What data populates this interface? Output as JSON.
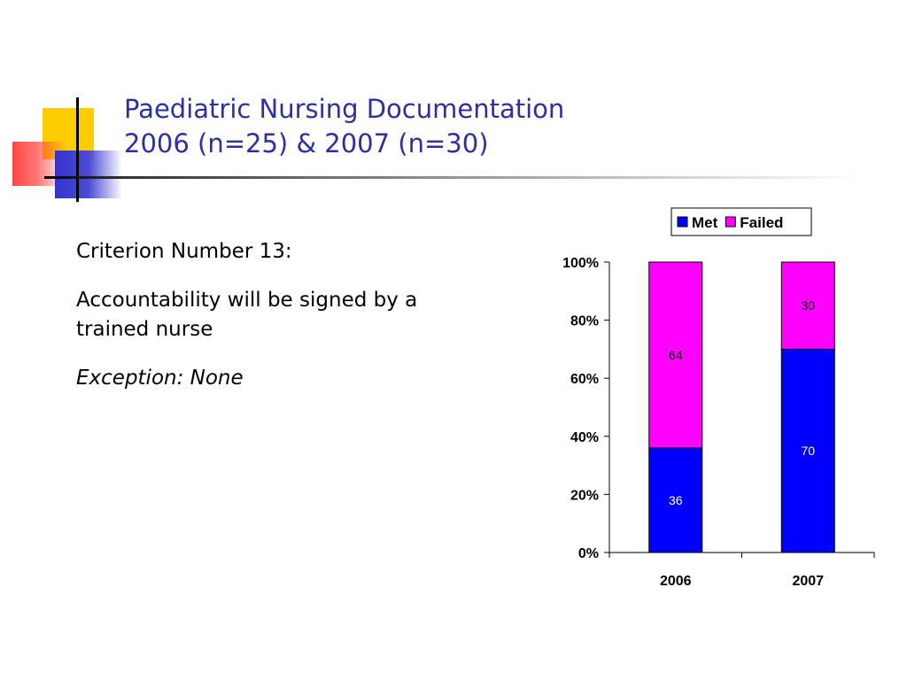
{
  "slide": {
    "title_line1": "Paediatric Nursing Documentation",
    "title_line2": "2006 (n=25) & 2007 (n=30)",
    "criterion": "Criterion Number 13:",
    "statement": "Accountability will be signed by a trained nurse",
    "exception": "Exception: None"
  },
  "colors": {
    "title": "#2e2ea8",
    "met": "#0000ff",
    "failed": "#ff00ff"
  },
  "chart_data": {
    "type": "bar",
    "stacked": true,
    "percent_stacked": true,
    "categories": [
      "2006",
      "2007"
    ],
    "series": [
      {
        "name": "Met",
        "values": [
          36,
          70
        ],
        "color": "#0000ff",
        "label_color": "#ffffff"
      },
      {
        "name": "Failed",
        "values": [
          64,
          30
        ],
        "color": "#ff00ff",
        "label_color": "#000000"
      }
    ],
    "yticks": [
      "0%",
      "20%",
      "40%",
      "60%",
      "80%",
      "100%"
    ],
    "ylim": [
      0,
      100
    ],
    "grid": false,
    "legend": "top-right"
  }
}
